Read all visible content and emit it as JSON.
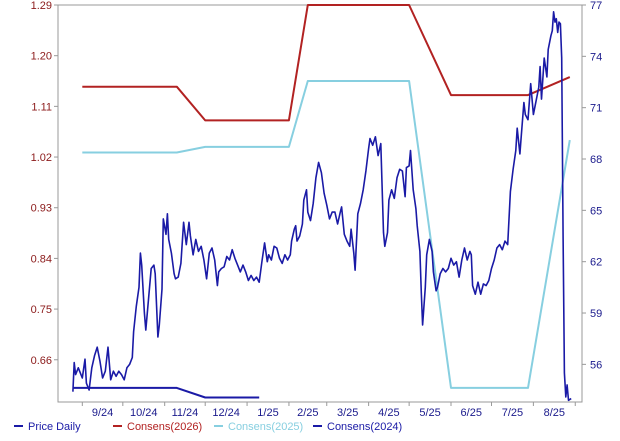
{
  "chart_data": {
    "type": "line",
    "x_tick_labels": [
      "9/24",
      "10/24",
      "11/24",
      "12/24",
      "1/25",
      "2/25",
      "3/25",
      "4/25",
      "5/25",
      "6/25",
      "7/25",
      "8/25"
    ],
    "y_left": {
      "ticks": [
        0.66,
        0.75,
        0.84,
        0.93,
        1.02,
        1.11,
        1.2,
        1.29
      ],
      "tick_labels": [
        "0.66",
        "0.75",
        "0.84",
        "0.93",
        "1.02",
        "1.11",
        "1.20",
        "1.29"
      ],
      "range": [
        0.585,
        1.29
      ]
    },
    "y_right": {
      "ticks": [
        56,
        59,
        62,
        65,
        68,
        71,
        74,
        77
      ],
      "tick_labels": [
        "56",
        "59",
        "62",
        "65",
        "68",
        "71",
        "74",
        "77"
      ],
      "range": [
        53.8,
        77
      ]
    },
    "legend_position": "bottom",
    "grid": false,
    "series": [
      {
        "name": "Price Daily",
        "axis": "right",
        "color": "#1a1aa6",
        "points": [
          [
            "8/25/24",
            54.4
          ],
          [
            "8/26/24",
            56.1
          ],
          [
            "8/27/24",
            55.4
          ],
          [
            "8/29/24",
            55.8
          ],
          [
            "9/1/24",
            55.2
          ],
          [
            "9/3/24",
            56.3
          ],
          [
            "9/4/24",
            54.9
          ],
          [
            "9/6/24",
            54.5
          ],
          [
            "9/8/24",
            55.8
          ],
          [
            "9/10/24",
            56.5
          ],
          [
            "9/12/24",
            57.0
          ],
          [
            "9/14/24",
            56.2
          ],
          [
            "9/16/24",
            55.2
          ],
          [
            "9/18/24",
            55.6
          ],
          [
            "9/20/24",
            57.0
          ],
          [
            "9/22/24",
            55.1
          ],
          [
            "9/24/24",
            55.6
          ],
          [
            "9/26/24",
            55.3
          ],
          [
            "9/28/24",
            55.6
          ],
          [
            "9/30/24",
            55.4
          ],
          [
            "10/2/24",
            55.1
          ],
          [
            "10/4/24",
            55.8
          ],
          [
            "10/6/24",
            56.0
          ],
          [
            "10/8/24",
            56.4
          ],
          [
            "10/9/24",
            57.9
          ],
          [
            "10/11/24",
            59.4
          ],
          [
            "10/13/24",
            60.5
          ],
          [
            "10/14/24",
            62.5
          ],
          [
            "10/15/24",
            61.8
          ],
          [
            "10/17/24",
            59.0
          ],
          [
            "10/18/24",
            58.0
          ],
          [
            "10/20/24",
            59.8
          ],
          [
            "10/22/24",
            61.6
          ],
          [
            "10/24/24",
            61.8
          ],
          [
            "10/25/24",
            61.3
          ],
          [
            "10/27/24",
            57.6
          ],
          [
            "10/28/24",
            58.3
          ],
          [
            "10/30/24",
            60.4
          ],
          [
            "10/31/24",
            64.5
          ],
          [
            "11/2/24",
            63.6
          ],
          [
            "11/3/24",
            64.8
          ],
          [
            "11/4/24",
            63.3
          ],
          [
            "11/6/24",
            62.5
          ],
          [
            "11/8/24",
            61.3
          ],
          [
            "11/9/24",
            61.0
          ],
          [
            "11/11/24",
            61.1
          ],
          [
            "11/13/24",
            61.9
          ],
          [
            "11/15/24",
            64.3
          ],
          [
            "11/17/24",
            63.0
          ],
          [
            "11/19/24",
            64.3
          ],
          [
            "11/20/24",
            63.5
          ],
          [
            "11/22/24",
            62.4
          ],
          [
            "11/24/24",
            63.3
          ],
          [
            "11/26/24",
            62.6
          ],
          [
            "11/28/24",
            62.9
          ],
          [
            "11/30/24",
            62.1
          ],
          [
            "12/2/24",
            61.0
          ],
          [
            "12/4/24",
            62.5
          ],
          [
            "12/6/24",
            62.8
          ],
          [
            "12/8/24",
            62.1
          ],
          [
            "12/10/24",
            60.6
          ],
          [
            "12/11/24",
            61.4
          ],
          [
            "12/13/24",
            61.6
          ],
          [
            "12/15/24",
            61.7
          ],
          [
            "12/17/24",
            62.3
          ],
          [
            "12/19/24",
            62.1
          ],
          [
            "12/21/24",
            62.7
          ],
          [
            "12/23/24",
            62.2
          ],
          [
            "12/25/24",
            61.8
          ],
          [
            "12/27/24",
            61.4
          ],
          [
            "12/29/24",
            61.8
          ],
          [
            "12/31/24",
            61.4
          ],
          [
            "1/2/25",
            60.9
          ],
          [
            "1/4/25",
            61.2
          ],
          [
            "1/6/25",
            60.9
          ],
          [
            "1/8/25",
            61.1
          ],
          [
            "1/10/25",
            60.8
          ],
          [
            "1/12/25",
            62.0
          ],
          [
            "1/14/25",
            63.1
          ],
          [
            "1/16/25",
            62.0
          ],
          [
            "1/17/25",
            62.4
          ],
          [
            "1/19/25",
            62.1
          ],
          [
            "1/21/25",
            62.9
          ],
          [
            "1/23/25",
            62.8
          ],
          [
            "1/25/25",
            62.2
          ],
          [
            "1/27/25",
            61.9
          ],
          [
            "1/29/25",
            62.4
          ],
          [
            "1/31/25",
            62.1
          ],
          [
            "2/2/25",
            62.4
          ],
          [
            "2/3/25",
            63.2
          ],
          [
            "2/5/25",
            63.9
          ],
          [
            "2/6/25",
            64.1
          ],
          [
            "2/7/25",
            63.2
          ],
          [
            "2/9/25",
            63.5
          ],
          [
            "2/11/25",
            64.2
          ],
          [
            "2/12/25",
            65.6
          ],
          [
            "2/14/25",
            66.2
          ],
          [
            "2/15/25",
            64.9
          ],
          [
            "2/17/25",
            64.4
          ],
          [
            "2/19/25",
            65.4
          ],
          [
            "2/21/25",
            66.9
          ],
          [
            "2/23/25",
            67.8
          ],
          [
            "2/25/25",
            67.2
          ],
          [
            "2/27/25",
            66.0
          ],
          [
            "3/1/25",
            65.3
          ],
          [
            "3/3/25",
            64.5
          ],
          [
            "3/5/25",
            64.9
          ],
          [
            "3/7/25",
            64.9
          ],
          [
            "3/9/25",
            64.2
          ],
          [
            "3/11/25",
            64.9
          ],
          [
            "3/12/25",
            65.2
          ],
          [
            "3/14/25",
            63.6
          ],
          [
            "3/16/25",
            63.2
          ],
          [
            "3/18/25",
            62.9
          ],
          [
            "3/19/25",
            63.9
          ],
          [
            "3/21/25",
            62.5
          ],
          [
            "3/22/25",
            61.5
          ],
          [
            "3/24/25",
            64.8
          ],
          [
            "3/26/25",
            65.4
          ],
          [
            "3/28/25",
            66.2
          ],
          [
            "3/30/25",
            67.3
          ],
          [
            "4/1/25",
            68.6
          ],
          [
            "4/2/25",
            69.2
          ],
          [
            "4/4/25",
            68.8
          ],
          [
            "4/6/25",
            69.3
          ],
          [
            "4/8/25",
            68.2
          ],
          [
            "4/10/25",
            68.9
          ],
          [
            "4/12/25",
            63.7
          ],
          [
            "4/13/25",
            62.9
          ],
          [
            "4/15/25",
            63.7
          ],
          [
            "4/16/25",
            65.6
          ],
          [
            "4/18/25",
            66.2
          ],
          [
            "4/20/25",
            65.7
          ],
          [
            "4/22/25",
            66.9
          ],
          [
            "4/24/25",
            67.4
          ],
          [
            "4/26/25",
            67.3
          ],
          [
            "4/28/25",
            65.8
          ],
          [
            "4/29/25",
            67.5
          ],
          [
            "5/1/25",
            67.6
          ],
          [
            "5/2/25",
            68.5
          ],
          [
            "5/4/25",
            66.2
          ],
          [
            "5/6/25",
            65.1
          ],
          [
            "5/7/25",
            64.1
          ],
          [
            "5/9/25",
            62.6
          ],
          [
            "5/10/25",
            60.2
          ],
          [
            "5/11/25",
            58.3
          ],
          [
            "5/13/25",
            60.5
          ],
          [
            "5/14/25",
            62.4
          ],
          [
            "5/16/25",
            63.3
          ],
          [
            "5/18/25",
            62.6
          ],
          [
            "5/19/25",
            61.4
          ],
          [
            "5/21/25",
            60.3
          ],
          [
            "5/22/25",
            60.5
          ],
          [
            "5/24/25",
            61.3
          ],
          [
            "5/26/25",
            61.6
          ],
          [
            "5/28/25",
            61.4
          ],
          [
            "5/30/25",
            61.6
          ],
          [
            "6/1/25",
            62.2
          ],
          [
            "6/3/25",
            61.8
          ],
          [
            "6/5/25",
            62.0
          ],
          [
            "6/7/25",
            61.1
          ],
          [
            "6/9/25",
            62.1
          ],
          [
            "6/11/25",
            62.8
          ],
          [
            "6/13/25",
            62.1
          ],
          [
            "6/15/25",
            62.6
          ],
          [
            "6/16/25",
            62.4
          ],
          [
            "6/17/25",
            60.6
          ],
          [
            "6/19/25",
            60.1
          ],
          [
            "6/21/25",
            60.8
          ],
          [
            "6/23/25",
            60.1
          ],
          [
            "6/25/25",
            60.7
          ],
          [
            "6/27/25",
            60.6
          ],
          [
            "6/29/25",
            60.9
          ],
          [
            "7/1/25",
            61.6
          ],
          [
            "7/3/25",
            62.1
          ],
          [
            "7/5/25",
            62.8
          ],
          [
            "7/7/25",
            63.0
          ],
          [
            "7/9/25",
            62.7
          ],
          [
            "7/11/25",
            63.2
          ],
          [
            "7/13/25",
            63.0
          ],
          [
            "7/15/25",
            66.1
          ],
          [
            "7/17/25",
            67.4
          ],
          [
            "7/19/25",
            68.5
          ],
          [
            "7/20/25",
            69.8
          ],
          [
            "7/22/25",
            68.3
          ],
          [
            "7/23/25",
            69.3
          ],
          [
            "7/25/25",
            71.3
          ],
          [
            "7/26/25",
            70.6
          ],
          [
            "7/28/25",
            70.3
          ],
          [
            "7/30/25",
            72.4
          ],
          [
            "8/1/25",
            70.6
          ],
          [
            "8/3/25",
            71.4
          ],
          [
            "8/5/25",
            72.2
          ],
          [
            "8/6/25",
            73.4
          ],
          [
            "8/7/25",
            71.5
          ],
          [
            "8/9/25",
            73.9
          ],
          [
            "8/11/25",
            72.8
          ],
          [
            "8/12/25",
            74.4
          ],
          [
            "8/14/25",
            75.2
          ],
          [
            "8/15/25",
            75.5
          ],
          [
            "8/16/25",
            76.6
          ],
          [
            "8/17/25",
            76.0
          ],
          [
            "8/18/25",
            76.2
          ],
          [
            "8/19/25",
            75.4
          ],
          [
            "8/20/25",
            76.0
          ],
          [
            "8/21/25",
            75.9
          ],
          [
            "8/22/25",
            73.9
          ],
          [
            "8/23/25",
            63.4
          ],
          [
            "8/24/25",
            55.5
          ],
          [
            "8/25/25",
            54.1
          ],
          [
            "8/26/25",
            54.8
          ],
          [
            "8/27/25",
            53.9
          ],
          [
            "8/29/25",
            54.0
          ]
        ]
      },
      {
        "name": "Consens(2026)",
        "axis": "left",
        "color": "#b22222",
        "points": [
          [
            "9/1/24",
            1.145
          ],
          [
            "11/10/24",
            1.145
          ],
          [
            "12/1/24",
            1.085
          ],
          [
            "2/1/25",
            1.085
          ],
          [
            "2/15/25",
            1.29
          ],
          [
            "5/1/25",
            1.29
          ],
          [
            "6/1/25",
            1.13
          ],
          [
            "7/28/25",
            1.13
          ],
          [
            "8/28/25",
            1.162
          ]
        ]
      },
      {
        "name": "Consens(2025)",
        "axis": "left",
        "color": "#87cfe0",
        "points": [
          [
            "9/1/24",
            1.028
          ],
          [
            "11/10/24",
            1.028
          ],
          [
            "12/1/24",
            1.038
          ],
          [
            "2/1/25",
            1.038
          ],
          [
            "2/15/25",
            1.155
          ],
          [
            "5/1/25",
            1.155
          ],
          [
            "6/1/25",
            0.61
          ],
          [
            "7/28/25",
            0.61
          ],
          [
            "8/28/25",
            1.05
          ]
        ]
      },
      {
        "name": "Consens(2024)",
        "axis": "left",
        "color": "#1a1aa6",
        "points": [
          [
            "8/25/24",
            0.61
          ],
          [
            "11/10/24",
            0.61
          ],
          [
            "12/1/24",
            0.593
          ],
          [
            "1/10/25",
            0.593
          ]
        ]
      }
    ]
  }
}
